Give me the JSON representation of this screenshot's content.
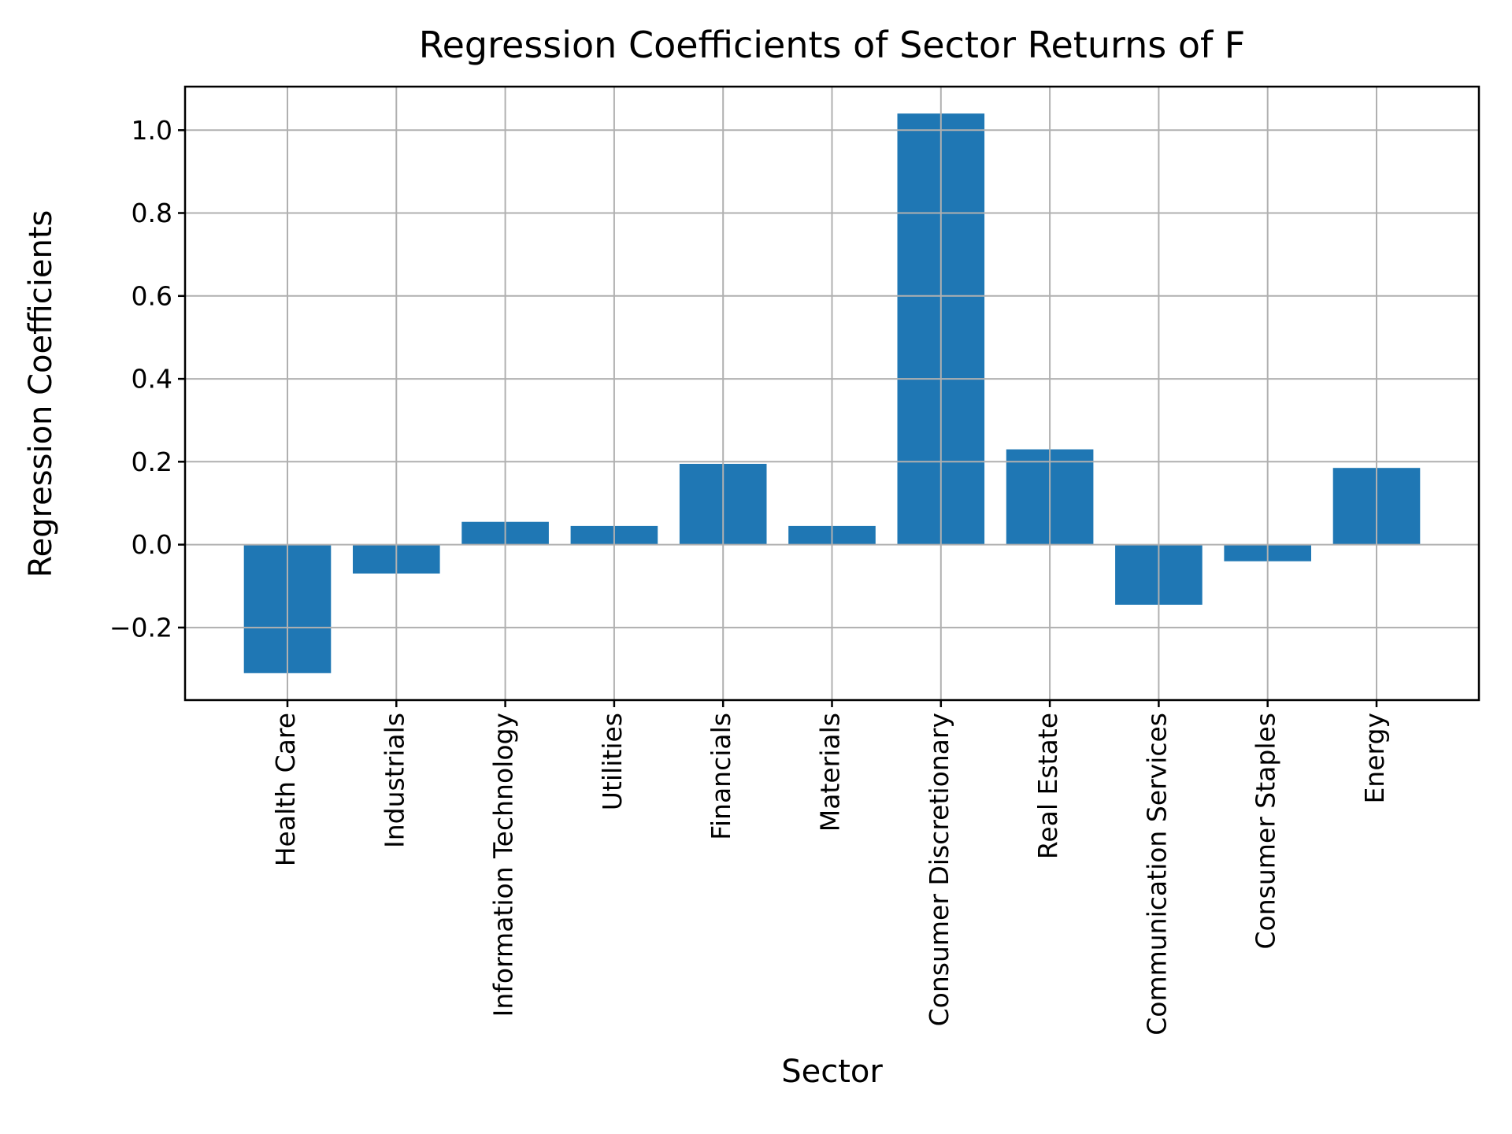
{
  "figure": {
    "title": "Regression Coefficients of Sector Returns of F",
    "xlabel": "Sector",
    "ylabel": "Regression Coefficients"
  },
  "chart_data": {
    "type": "bar",
    "title": "Regression Coefficients of Sector Returns of F",
    "xlabel": "Sector",
    "ylabel": "Regression Coefficients",
    "categories": [
      "Health Care",
      "Industrials",
      "Information Technology",
      "Utilities",
      "Financials",
      "Materials",
      "Consumer Discretionary",
      "Real Estate",
      "Communication Services",
      "Consumer Staples",
      "Energy"
    ],
    "values": [
      -0.31,
      -0.07,
      0.055,
      0.045,
      0.195,
      0.045,
      1.04,
      0.23,
      -0.145,
      -0.04,
      0.185
    ],
    "yticks": [
      1.0,
      0.8,
      0.6,
      0.4,
      0.2,
      0.0,
      -0.2
    ],
    "ylim": [
      -0.375,
      1.105
    ],
    "xlim": [
      -0.94,
      10.94
    ],
    "bar_width_units": 0.8,
    "bar_color": "#1f77b4",
    "grid": true,
    "grid_color": "#b0b0b0",
    "axis_color": "#000000",
    "background": "#ffffff",
    "legend": "none",
    "x_tick_label_rotation_deg": 90
  }
}
